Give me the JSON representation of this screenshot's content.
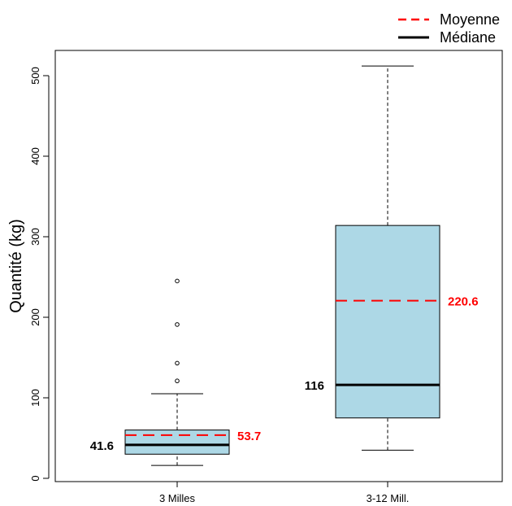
{
  "chart_data": {
    "type": "boxplot",
    "title": "",
    "xlabel": "",
    "ylabel": "Quantité (kg)",
    "ylim": [
      0,
      525
    ],
    "y_ticks": [
      0,
      100,
      200,
      300,
      400,
      500
    ],
    "legend": {
      "position": "top-right",
      "entries": [
        {
          "label": "Moyenne",
          "style": "dashed",
          "color": "#ff0000"
        },
        {
          "label": "Médiane",
          "style": "solid",
          "color": "#000000"
        }
      ]
    },
    "box_fill": "#add8e6",
    "groups": [
      {
        "label": "3 Milles",
        "whisker_low": 16,
        "q1": 30,
        "median": 41.6,
        "q3": 60,
        "whisker_high": 105,
        "mean": 53.7,
        "outliers": [
          121,
          143,
          191,
          245
        ],
        "median_label": "41.6",
        "mean_label": "53.7"
      },
      {
        "label": "3-12 Mill.",
        "whisker_low": 35,
        "q1": 75,
        "median": 116,
        "q3": 314,
        "whisker_high": 512,
        "mean": 220.6,
        "outliers": [],
        "median_label": "116",
        "mean_label": "220.6"
      }
    ]
  }
}
